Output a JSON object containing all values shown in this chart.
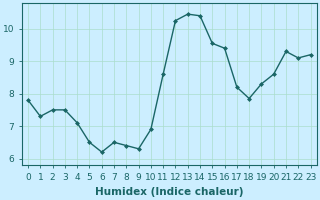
{
  "x": [
    0,
    1,
    2,
    3,
    4,
    5,
    6,
    7,
    8,
    9,
    10,
    11,
    12,
    13,
    14,
    15,
    16,
    17,
    18,
    19,
    20,
    21,
    22,
    23
  ],
  "y": [
    7.8,
    7.3,
    7.5,
    7.5,
    7.1,
    6.5,
    6.2,
    6.5,
    6.4,
    6.3,
    6.9,
    8.6,
    10.25,
    10.45,
    10.4,
    9.55,
    9.4,
    8.2,
    7.85,
    8.3,
    8.6,
    9.3,
    9.1,
    9.2
  ],
  "line_color": "#1a6666",
  "marker": "D",
  "marker_size": 2.0,
  "bg_color": "#cceeff",
  "grid_color": "#aaddcc",
  "xlabel": "Humidex (Indice chaleur)",
  "xlim": [
    -0.5,
    23.5
  ],
  "ylim": [
    5.8,
    10.8
  ],
  "yticks": [
    6,
    7,
    8,
    9,
    10
  ],
  "xticks": [
    0,
    1,
    2,
    3,
    4,
    5,
    6,
    7,
    8,
    9,
    10,
    11,
    12,
    13,
    14,
    15,
    16,
    17,
    18,
    19,
    20,
    21,
    22,
    23
  ],
  "xlabel_fontsize": 7.5,
  "tick_fontsize": 6.5,
  "line_width": 1.0
}
